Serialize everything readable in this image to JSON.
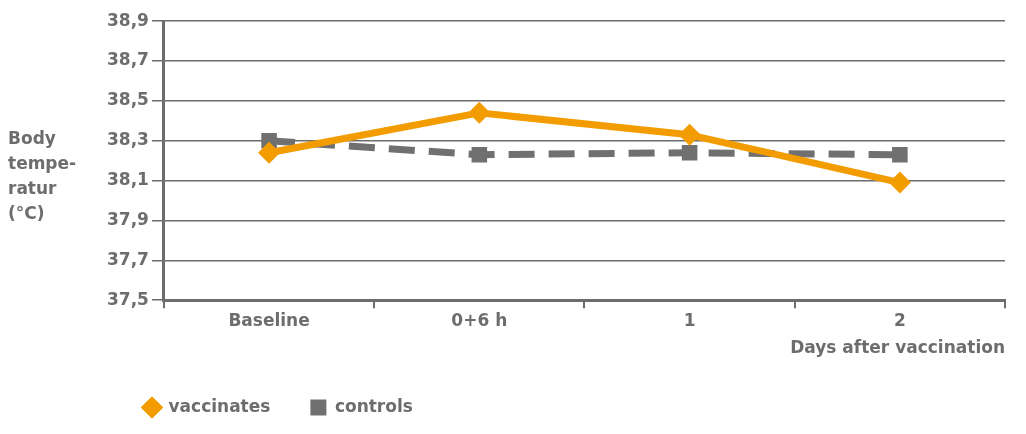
{
  "chart_data": {
    "type": "line",
    "ylabel": "Body\ntempe-\nratur\n(°C)",
    "xlabel": "Days after vaccination",
    "categories": [
      "Baseline",
      "0+6 h",
      "1",
      "2"
    ],
    "series": [
      {
        "name": "vaccinates",
        "color": "#f39c00",
        "values": [
          38.24,
          38.44,
          38.33,
          38.09
        ],
        "marker": "diamond",
        "line_style": "solid"
      },
      {
        "name": "controls",
        "color": "#707070",
        "values": [
          38.3,
          38.23,
          38.24,
          38.23
        ],
        "marker": "square",
        "line_style": "dashed"
      }
    ],
    "ylim": [
      37.5,
      38.9
    ],
    "yticks": [
      {
        "value": 37.5,
        "label": "37,5"
      },
      {
        "value": 37.7,
        "label": "37,7"
      },
      {
        "value": 37.9,
        "label": "37,9"
      },
      {
        "value": 38.1,
        "label": "38,1"
      },
      {
        "value": 38.3,
        "label": "38,3"
      },
      {
        "value": 38.5,
        "label": "38,5"
      },
      {
        "value": 38.7,
        "label": "38,7"
      },
      {
        "value": 38.9,
        "label": "38,9"
      }
    ],
    "grid": "y",
    "legend": "bottom left"
  }
}
